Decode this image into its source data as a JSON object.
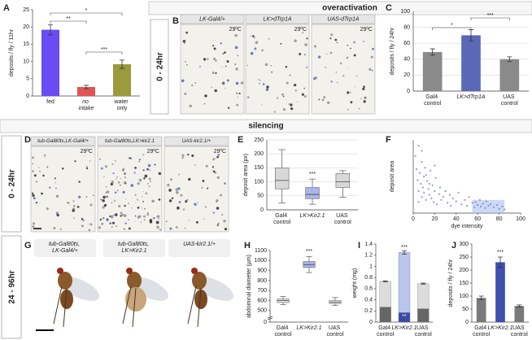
{
  "section_titles": [
    "overactivation",
    "silencing"
  ],
  "time_labels": [
    "0 - 24hr",
    "0 - 24hr",
    "24 - 96hr"
  ],
  "panel_letters": [
    "A",
    "B",
    "C",
    "D",
    "E",
    "F",
    "G",
    "H",
    "I",
    "J"
  ],
  "panel_B": {
    "captions": [
      "LK-Gal4/+",
      "LK>dTrp1A",
      "UAS-dTrp1A"
    ],
    "temperatures": [
      "29ºC",
      "29ºC",
      "29ºC"
    ]
  },
  "panel_D": {
    "captions": [
      "tub-Gal80ts,LK-Gal4/+",
      "tub-Gal80ts,LK>kir2.1",
      "UAS-kir2.1/+"
    ],
    "temperatures": [
      "29ºC",
      "29ºC",
      "29ºC"
    ]
  },
  "panel_G": {
    "captions": [
      "tub-Gal80ts, LK-Gal4/+",
      "tub-Gal80ts, LK>Kir2.1",
      "UAS-kir2.1/+"
    ]
  },
  "chart_data": [
    {
      "type": "bar",
      "y_label": "deposits / fly / 11hr",
      "categories": [
        "fed",
        "no intake",
        "water only"
      ],
      "values": [
        19.2,
        2.6,
        9.2
      ],
      "errors": [
        1.5,
        0.5,
        1.2
      ],
      "colors": [
        "#6a4cf5",
        "#e05555",
        "#9b9a3c"
      ],
      "ylim": [
        0,
        25
      ],
      "yticks": [
        0,
        5,
        10,
        15,
        20,
        25
      ],
      "grid": false,
      "annotations": [
        "*",
        "**",
        "***"
      ]
    },
    {
      "type": "bar",
      "y_label": "deposits / fly / 24hr",
      "categories": [
        "Gal4 control",
        "LK>dTrp1A",
        "UAS control"
      ],
      "values": [
        49,
        70,
        40
      ],
      "errors": [
        4,
        7,
        3
      ],
      "colors": [
        "#8a8a8a",
        "#5a68b8",
        "#8a8a8a"
      ],
      "ylim": [
        0,
        100
      ],
      "yticks": [
        0,
        20,
        40,
        60,
        80,
        100
      ],
      "grid": true,
      "annotations": [
        "*",
        "***"
      ]
    },
    {
      "type": "box",
      "y_label": "deposit area (px)",
      "categories": [
        "Gal4 control",
        "LK>Kir2.1",
        "UAS control"
      ],
      "whisker_low": [
        25,
        20,
        45
      ],
      "q1": [
        75,
        40,
        80
      ],
      "median": [
        105,
        55,
        100
      ],
      "q3": [
        150,
        80,
        130
      ],
      "whisker_high": [
        215,
        110,
        140
      ],
      "colors": [
        "#d8d8d8",
        "#a9b6ea",
        "#d8d8d8"
      ],
      "ylim": [
        0,
        250
      ],
      "yticks": [
        0,
        50,
        100,
        150,
        200,
        250
      ],
      "grid": true,
      "annotations": [
        "***"
      ]
    },
    {
      "type": "scatter",
      "x_label": "dye intensity",
      "y_label": "deposit area",
      "x": [
        2,
        3,
        4,
        5,
        5,
        6,
        7,
        8,
        8,
        9,
        10,
        10,
        11,
        12,
        13,
        14,
        15,
        16,
        17,
        18,
        19,
        20,
        21,
        22,
        24,
        25,
        26,
        28,
        30,
        32,
        34,
        35,
        37,
        40,
        42,
        45,
        48,
        50,
        52,
        55,
        57,
        58,
        60,
        62,
        63,
        65,
        67,
        68,
        70,
        72,
        75,
        78,
        80,
        83,
        85,
        5,
        8,
        12,
        15,
        20
      ],
      "y": [
        78,
        60,
        45,
        92,
        30,
        55,
        40,
        70,
        22,
        35,
        50,
        28,
        62,
        18,
        44,
        33,
        25,
        58,
        20,
        38,
        15,
        30,
        48,
        12,
        26,
        35,
        18,
        22,
        30,
        14,
        25,
        10,
        20,
        16,
        28,
        12,
        18,
        10,
        22,
        14,
        8,
        15,
        11,
        18,
        9,
        13,
        7,
        16,
        10,
        12,
        8,
        11,
        6,
        9,
        5,
        15,
        85,
        52,
        40,
        65
      ],
      "color": "#6f78b8",
      "highlight": {
        "xlim": [
          55,
          85
        ],
        "ylim": [
          0,
          18
        ],
        "color": "#a9c0ee"
      },
      "xlim": [
        0,
        100
      ],
      "xticks": [
        0,
        20,
        40,
        60,
        80,
        100
      ],
      "ylim": [
        0,
        100
      ]
    },
    {
      "type": "box",
      "y_label": "abdominal diameter (µm)",
      "categories": [
        "Gal4 control",
        "LK>Kir2.1",
        "UAS control"
      ],
      "whisker_low": [
        560,
        880,
        550
      ],
      "q1": [
        580,
        930,
        570
      ],
      "median": [
        600,
        960,
        585
      ],
      "q3": [
        615,
        990,
        600
      ],
      "whisker_high": [
        640,
        1040,
        630
      ],
      "colors": [
        "#e4e4e4",
        "#a9b6ea",
        "#e4e4e4"
      ],
      "ylim": [
        450,
        1100
      ],
      "axis_break": true,
      "yticks": [
        0,
        500,
        600,
        700,
        800,
        900,
        1000,
        1100
      ],
      "grid": false,
      "annotations": [
        "***"
      ]
    },
    {
      "type": "stacked_bar",
      "y_label": "weight (mg)",
      "categories": [
        "Gal4 control",
        "LK>Kir2.1",
        "UAS control"
      ],
      "series": [
        {
          "values": [
            0.27,
            0.17,
            0.24
          ],
          "colors": [
            "#666666",
            "#3a48a8",
            "#666666"
          ]
        },
        {
          "values": [
            0.46,
            1.08,
            0.45
          ],
          "errors": [
            0.01,
            0.03,
            0.01
          ],
          "colors": [
            "#dcdcdc",
            "#b9c5ef",
            "#dcdcdc"
          ]
        }
      ],
      "ylim": [
        0,
        1.4
      ],
      "yticks": [
        0,
        0.2,
        0.4,
        0.6,
        0.8,
        1,
        1.2,
        1.4
      ],
      "grid": false,
      "annotations": [
        "***",
        "**"
      ]
    },
    {
      "type": "bar",
      "y_label": "deposits / fly / 24hr",
      "categories": [
        "Gal4 control",
        "LK>Kir2.1",
        "UAS control"
      ],
      "values": [
        93,
        230,
        62
      ],
      "errors": [
        7,
        20,
        4
      ],
      "colors": [
        "#7a7a7a",
        "#3f4fb0",
        "#7a7a7a"
      ],
      "ylim": [
        0,
        300
      ],
      "yticks": [
        0,
        50,
        100,
        150,
        200,
        250,
        300
      ],
      "grid": false,
      "annotations": [
        "***"
      ]
    }
  ]
}
